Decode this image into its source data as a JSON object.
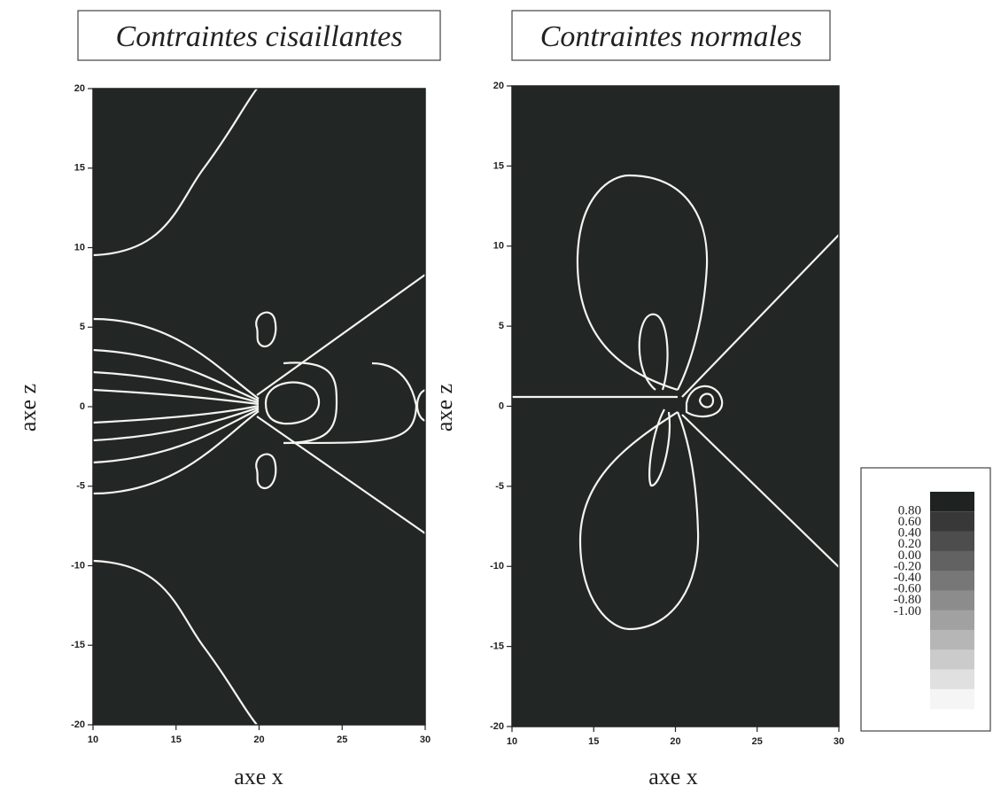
{
  "chart_data": [
    {
      "type": "contour",
      "title": "Contraintes cisaillantes",
      "xlabel": "axe x",
      "ylabel": "axe z",
      "xlim": [
        10,
        30
      ],
      "ylim": [
        -20,
        20
      ],
      "xticks": [
        10,
        15,
        20,
        25,
        30
      ],
      "yticks": [
        20,
        15,
        10,
        5,
        0,
        -5,
        -10,
        -15,
        -20
      ]
    },
    {
      "type": "contour",
      "title": "Contraintes normales",
      "xlabel": "axe x",
      "ylabel": "axe z",
      "xlim": [
        10,
        30
      ],
      "ylim": [
        -20,
        20
      ],
      "xticks": [
        10,
        15,
        20,
        25,
        30
      ],
      "yticks": [
        20,
        15,
        10,
        5,
        0,
        -5,
        -10,
        -15,
        -20
      ],
      "colorbar": [
        {
          "value": 0.8,
          "label": "0.80"
        },
        {
          "value": 0.6,
          "label": "0.60"
        },
        {
          "value": 0.4,
          "label": "0.40"
        },
        {
          "value": 0.2,
          "label": "0.20"
        },
        {
          "value": 0,
          "label": "0.00"
        },
        {
          "value": -0.2,
          "label": "-0.20"
        },
        {
          "value": -0.4,
          "label": "-0.40"
        },
        {
          "value": -0.6,
          "label": "-0.60"
        },
        {
          "value": -0.8,
          "label": "-0.80"
        },
        {
          "value": -1,
          "label": "-1.00"
        }
      ]
    }
  ]
}
